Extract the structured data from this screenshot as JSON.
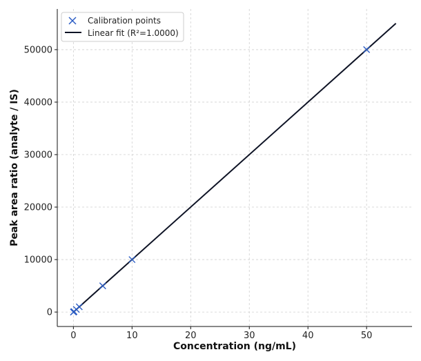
{
  "chart_data": {
    "type": "scatter",
    "title": "",
    "xlabel": "Concentration (ng/mL)",
    "ylabel": "Peak area ratio (analyte / IS)",
    "xlim": [
      -2.75,
      57.75
    ],
    "ylim": [
      -2750,
      57750
    ],
    "xticks": [
      0,
      10,
      20,
      30,
      40,
      50
    ],
    "yticks": [
      0,
      10000,
      20000,
      30000,
      40000,
      50000
    ],
    "grid": true,
    "legend_position": "top-left",
    "series": [
      {
        "name": "Calibration points",
        "kind": "scatter",
        "marker": "x",
        "color": "#2a5cc4",
        "x": [
          0,
          0.1,
          0.5,
          1,
          5,
          10,
          50
        ],
        "y": [
          0,
          100,
          500,
          1000,
          5000,
          10000,
          50000
        ]
      },
      {
        "name": "Linear fit (R²=1.0000)",
        "kind": "line",
        "color": "#0e1325",
        "x": [
          0,
          55
        ],
        "y": [
          0,
          55000
        ]
      }
    ]
  }
}
